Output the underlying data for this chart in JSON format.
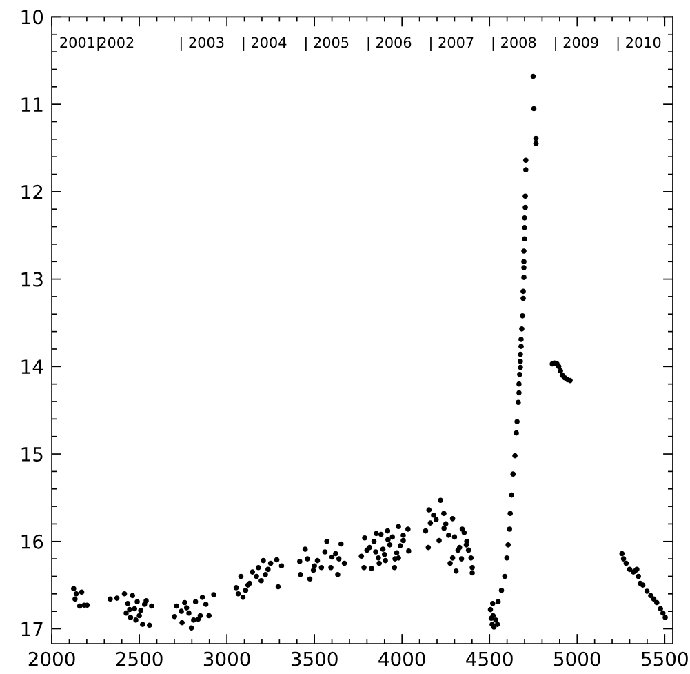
{
  "chart_data": {
    "type": "scatter",
    "marker": "circle",
    "series": [
      {
        "color": "#000000",
        "x": [
          2125,
          2171,
          2133,
          2160,
          2202,
          2140,
          2185,
          2334,
          2372,
          2415,
          2461,
          2434,
          2473,
          2450,
          2500,
          2519,
          2558,
          2539,
          2570,
          2488,
          2508,
          2445,
          2425,
          2480,
          2530,
          2713,
          2701,
          2744,
          2797,
          2759,
          2783,
          2821,
          2848,
          2860,
          2898,
          2925,
          2836,
          2770,
          2810,
          2880,
          2740,
          3053,
          3092,
          3080,
          3130,
          3169,
          3208,
          3235,
          3285,
          3312,
          3293,
          3107,
          3146,
          3196,
          3065,
          3120,
          3180,
          3250,
          3220,
          3416,
          3420,
          3447,
          3474,
          3517,
          3571,
          3594,
          3621,
          3652,
          3671,
          3633,
          3494,
          3460,
          3540,
          3600,
          3560,
          3500,
          3640,
          3787,
          3768,
          3783,
          3826,
          3853,
          3891,
          3918,
          3957,
          3980,
          4034,
          4038,
          4007,
          3865,
          3930,
          3815,
          3980,
          4007,
          3840,
          3900,
          3870,
          3945,
          3960,
          3800,
          3920,
          3990,
          3850,
          3880,
          3905,
          3970,
          4220,
          4154,
          4162,
          4135,
          4150,
          4239,
          4289,
          4266,
          4289,
          4309,
          4344,
          4367,
          4394,
          4401,
          4401,
          4212,
          4329,
          4180,
          4250,
          4300,
          4320,
          4355,
          4380,
          4275,
          4240,
          4195,
          4340,
          4370,
          4505,
          4510,
          4515,
          4525,
          4535,
          4545,
          4520,
          4518,
          4549,
          4568,
          4587,
          4599,
          4606,
          4614,
          4618,
          4626,
          4634,
          4645,
          4653,
          4657,
          4664,
          4668,
          4668,
          4672,
          4676,
          4676,
          4676,
          4680,
          4680,
          4684,
          4688,
          4692,
          4692,
          4696,
          4696,
          4696,
          4696,
          4700,
          4700,
          4700,
          4704,
          4704,
          4707,
          4707,
          4765,
          4765,
          4753,
          4749,
          4858,
          4870,
          4885,
          4895,
          4905,
          4915,
          4930,
          4945,
          4960,
          5256,
          5265,
          5280,
          5300,
          5321,
          5330,
          5341,
          5350,
          5360,
          5375,
          5399,
          5420,
          5438,
          5455,
          5476,
          5490,
          5503
        ],
        "values": [
          16.54,
          16.58,
          16.66,
          16.74,
          16.73,
          16.6,
          16.73,
          16.66,
          16.65,
          16.6,
          16.62,
          16.71,
          16.77,
          16.87,
          16.85,
          16.95,
          16.96,
          16.68,
          16.74,
          16.69,
          16.79,
          16.78,
          16.82,
          16.9,
          16.72,
          16.74,
          16.86,
          16.93,
          16.99,
          16.7,
          16.82,
          16.69,
          16.85,
          16.64,
          16.85,
          16.61,
          16.89,
          16.76,
          16.9,
          16.72,
          16.8,
          16.53,
          16.64,
          16.4,
          16.48,
          16.4,
          16.22,
          16.32,
          16.21,
          16.28,
          16.52,
          16.56,
          16.35,
          16.45,
          16.6,
          16.5,
          16.3,
          16.25,
          16.38,
          16.23,
          16.38,
          16.09,
          16.43,
          16.22,
          16.0,
          16.3,
          16.14,
          16.03,
          16.25,
          16.38,
          16.33,
          16.2,
          16.3,
          16.18,
          16.12,
          16.28,
          16.2,
          15.96,
          16.17,
          16.3,
          16.31,
          15.91,
          16.09,
          15.88,
          16.3,
          15.83,
          15.86,
          16.11,
          15.99,
          16.19,
          16.04,
          16.07,
          16.19,
          15.93,
          16.0,
          16.15,
          16.25,
          15.95,
          16.2,
          16.1,
          15.98,
          16.05,
          16.12,
          15.92,
          16.22,
          16.13,
          15.53,
          15.64,
          15.79,
          15.88,
          16.07,
          15.68,
          15.74,
          15.93,
          16.19,
          16.34,
          15.86,
          16.04,
          16.19,
          16.36,
          16.3,
          15.99,
          16.07,
          15.7,
          15.8,
          15.95,
          16.1,
          15.9,
          16.1,
          16.25,
          15.85,
          15.75,
          16.2,
          16.0,
          16.78,
          16.88,
          16.95,
          16.98,
          16.9,
          16.95,
          16.85,
          16.71,
          16.69,
          16.56,
          16.4,
          16.19,
          16.04,
          15.86,
          15.68,
          15.47,
          15.23,
          15.02,
          14.76,
          14.63,
          14.41,
          14.3,
          14.2,
          14.09,
          14.01,
          13.94,
          13.86,
          13.77,
          13.69,
          13.57,
          13.42,
          13.22,
          13.14,
          12.98,
          12.87,
          12.8,
          12.68,
          12.54,
          12.41,
          12.3,
          12.18,
          12.05,
          11.75,
          11.64,
          11.45,
          11.39,
          11.05,
          10.68,
          13.97,
          13.96,
          13.97,
          14.0,
          14.05,
          14.1,
          14.13,
          14.15,
          14.16,
          16.14,
          16.2,
          16.25,
          16.32,
          16.35,
          16.34,
          16.32,
          16.4,
          16.48,
          16.5,
          16.57,
          16.62,
          16.66,
          16.7,
          16.77,
          16.82,
          16.87
        ]
      }
    ],
    "xlim": [
      2000,
      5546
    ],
    "ylim": [
      17.17,
      10
    ],
    "xticks": [
      2000,
      {
        "value": 2100,
        "label": null
      },
      {
        "value": 2200,
        "label": null
      },
      {
        "value": 2300,
        "label": null
      },
      {
        "value": 2400,
        "label": null
      },
      2500,
      {
        "value": 2600,
        "label": null
      },
      {
        "value": 2700,
        "label": null
      },
      {
        "value": 2800,
        "label": null
      },
      {
        "value": 2900,
        "label": null
      },
      3000,
      {
        "value": 3100,
        "label": null
      },
      {
        "value": 3200,
        "label": null
      },
      {
        "value": 3300,
        "label": null
      },
      {
        "value": 3400,
        "label": null
      },
      3500,
      {
        "value": 3600,
        "label": null
      },
      {
        "value": 3700,
        "label": null
      },
      {
        "value": 3800,
        "label": null
      },
      {
        "value": 3900,
        "label": null
      },
      4000,
      {
        "value": 4100,
        "label": null
      },
      {
        "value": 4200,
        "label": null
      },
      {
        "value": 4300,
        "label": null
      },
      {
        "value": 4400,
        "label": null
      },
      4500,
      {
        "value": 4600,
        "label": null
      },
      {
        "value": 4700,
        "label": null
      },
      {
        "value": 4800,
        "label": null
      },
      {
        "value": 4900,
        "label": null
      },
      5000,
      {
        "value": 5100,
        "label": null
      },
      {
        "value": 5200,
        "label": null
      },
      {
        "value": 5300,
        "label": null
      },
      {
        "value": 5400,
        "label": null
      },
      5500
    ],
    "yticks": [
      10,
      {
        "value": 10.2,
        "label": null
      },
      {
        "value": 10.4,
        "label": null
      },
      {
        "value": 10.6,
        "label": null
      },
      {
        "value": 10.8,
        "label": null
      },
      11,
      {
        "value": 11.2,
        "label": null
      },
      {
        "value": 11.4,
        "label": null
      },
      {
        "value": 11.6,
        "label": null
      },
      {
        "value": 11.8,
        "label": null
      },
      12,
      {
        "value": 12.2,
        "label": null
      },
      {
        "value": 12.4,
        "label": null
      },
      {
        "value": 12.6,
        "label": null
      },
      {
        "value": 12.8,
        "label": null
      },
      13,
      {
        "value": 13.2,
        "label": null
      },
      {
        "value": 13.4,
        "label": null
      },
      {
        "value": 13.6,
        "label": null
      },
      {
        "value": 13.8,
        "label": null
      },
      14,
      {
        "value": 14.2,
        "label": null
      },
      {
        "value": 14.4,
        "label": null
      },
      {
        "value": 14.6,
        "label": null
      },
      {
        "value": 14.8,
        "label": null
      },
      15,
      {
        "value": 15.2,
        "label": null
      },
      {
        "value": 15.4,
        "label": null
      },
      {
        "value": 15.6,
        "label": null
      },
      {
        "value": 15.8,
        "label": null
      },
      16,
      {
        "value": 16.2,
        "label": null
      },
      {
        "value": 16.4,
        "label": null
      },
      {
        "value": 16.6,
        "label": null
      },
      {
        "value": 16.8,
        "label": null
      },
      17
    ],
    "annotations": [
      "2001|",
      "2002",
      "| 2003",
      "| 2004",
      "| 2005",
      "| 2006",
      "| 2007",
      "| 2008",
      "| 2009",
      "| 2010"
    ]
  }
}
